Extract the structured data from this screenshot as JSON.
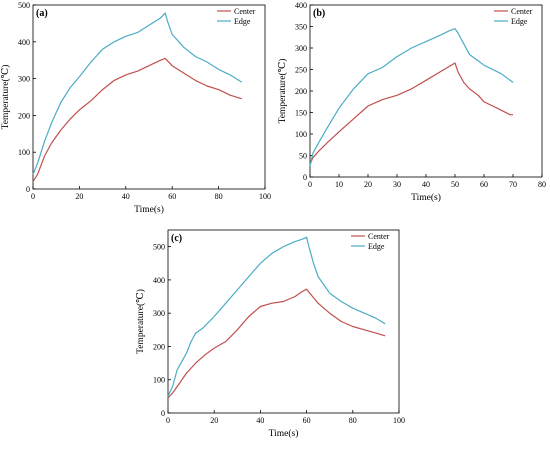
{
  "figure": {
    "panels": [
      "(a)",
      "(b)",
      "(c)"
    ]
  },
  "chart_data": [
    {
      "type": "line",
      "panel_label": "(a)",
      "xlabel": "Time(s)",
      "ylabel": "Temperature(℃)",
      "xlim": [
        0,
        100
      ],
      "ylim": [
        0,
        500
      ],
      "xticks": [
        0,
        20,
        40,
        60,
        80,
        100
      ],
      "yticks": [
        0,
        100,
        200,
        300,
        400,
        500
      ],
      "grid": false,
      "legend": "top-right",
      "series": [
        {
          "name": "Center",
          "color": "#c0504d",
          "x": [
            0,
            2,
            5,
            8,
            12,
            16,
            20,
            25,
            30,
            35,
            40,
            45,
            50,
            55,
            57,
            60,
            65,
            70,
            75,
            80,
            85,
            90
          ],
          "y": [
            20,
            40,
            90,
            125,
            160,
            190,
            215,
            240,
            270,
            295,
            310,
            320,
            335,
            350,
            355,
            335,
            315,
            295,
            280,
            270,
            255,
            245
          ]
        },
        {
          "name": "Edge",
          "color": "#4bacc6",
          "x": [
            0,
            2,
            5,
            8,
            12,
            16,
            20,
            25,
            30,
            35,
            40,
            45,
            50,
            55,
            57,
            58,
            60,
            65,
            70,
            75,
            80,
            85,
            90
          ],
          "y": [
            40,
            70,
            130,
            180,
            235,
            275,
            305,
            345,
            380,
            400,
            415,
            425,
            445,
            465,
            478,
            455,
            420,
            385,
            360,
            345,
            325,
            310,
            290
          ]
        }
      ]
    },
    {
      "type": "line",
      "panel_label": "(b)",
      "xlabel": "Time(s)",
      "ylabel": "Temperature(℃)",
      "xlim": [
        0,
        80
      ],
      "ylim": [
        0,
        400
      ],
      "xticks": [
        0,
        10,
        20,
        30,
        40,
        50,
        60,
        70,
        80
      ],
      "yticks": [
        0,
        50,
        100,
        150,
        200,
        250,
        300,
        350,
        400
      ],
      "grid": false,
      "legend": "top-right",
      "series": [
        {
          "name": "Center",
          "color": "#c0504d",
          "x": [
            0,
            1,
            3,
            6,
            10,
            15,
            20,
            25,
            30,
            35,
            40,
            45,
            50,
            51,
            53,
            55,
            58,
            60,
            63,
            66,
            69,
            70
          ],
          "y": [
            30,
            45,
            60,
            80,
            105,
            135,
            165,
            180,
            190,
            205,
            225,
            245,
            265,
            245,
            220,
            205,
            190,
            175,
            165,
            155,
            145,
            145
          ]
        },
        {
          "name": "Edge",
          "color": "#4bacc6",
          "x": [
            0,
            1,
            3,
            6,
            10,
            15,
            20,
            25,
            30,
            35,
            40,
            45,
            48,
            50,
            51,
            53,
            55,
            58,
            60,
            63,
            66,
            70
          ],
          "y": [
            25,
            55,
            80,
            115,
            160,
            205,
            240,
            255,
            280,
            300,
            315,
            330,
            340,
            345,
            335,
            310,
            285,
            270,
            260,
            250,
            240,
            220
          ]
        }
      ]
    },
    {
      "type": "line",
      "panel_label": "(c)",
      "xlabel": "Time(s)",
      "ylabel": "Temperature(℃)",
      "xlim": [
        0,
        100
      ],
      "ylim": [
        0,
        550
      ],
      "xticks": [
        0,
        20,
        40,
        60,
        80,
        100
      ],
      "yticks": [
        0,
        100,
        200,
        300,
        400,
        500
      ],
      "grid": false,
      "legend": "top-right",
      "series": [
        {
          "name": "Center",
          "color": "#c0504d",
          "x": [
            0,
            2,
            5,
            8,
            12,
            16,
            20,
            25,
            30,
            35,
            40,
            45,
            50,
            55,
            58,
            60,
            62,
            65,
            70,
            75,
            80,
            85,
            90,
            94
          ],
          "y": [
            45,
            60,
            90,
            120,
            150,
            175,
            195,
            215,
            250,
            290,
            320,
            330,
            335,
            350,
            365,
            372,
            355,
            330,
            300,
            275,
            260,
            250,
            240,
            232
          ]
        },
        {
          "name": "Edge",
          "color": "#4bacc6",
          "x": [
            0,
            2,
            4,
            6,
            8,
            10,
            12,
            15,
            20,
            25,
            30,
            35,
            40,
            45,
            50,
            55,
            58,
            60,
            61,
            63,
            65,
            70,
            75,
            80,
            85,
            90,
            94
          ],
          "y": [
            50,
            80,
            130,
            155,
            180,
            215,
            240,
            255,
            290,
            330,
            370,
            410,
            450,
            480,
            500,
            515,
            522,
            528,
            500,
            450,
            410,
            360,
            335,
            315,
            300,
            285,
            268
          ]
        }
      ]
    }
  ]
}
